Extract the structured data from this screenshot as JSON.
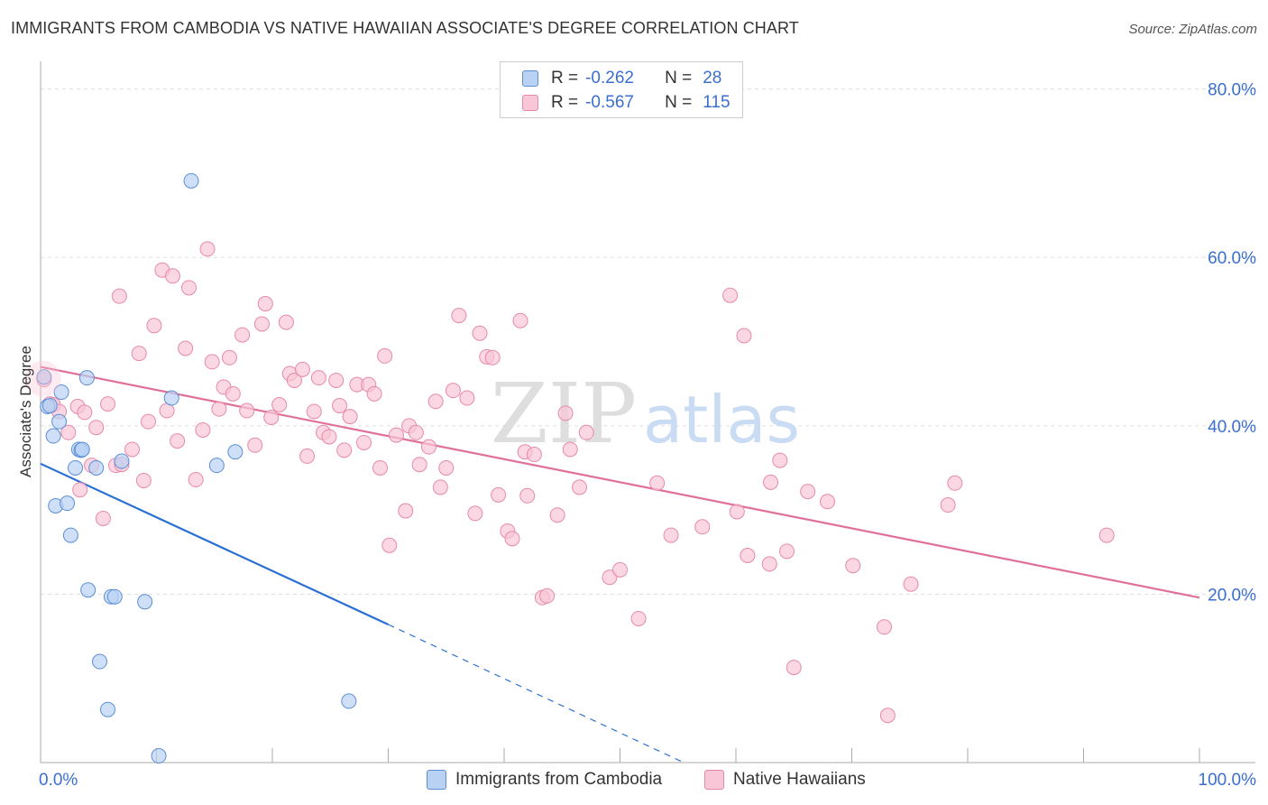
{
  "title": "IMMIGRANTS FROM CAMBODIA VS NATIVE HAWAIIAN ASSOCIATE'S DEGREE CORRELATION CHART",
  "source": "Source: ZipAtlas.com",
  "watermark": {
    "zip": "ZIP",
    "atlas": "atlas"
  },
  "legend": {
    "series1": {
      "r_label": "R =",
      "r_value": "-0.262",
      "n_label": "N =",
      "n_value": "28"
    },
    "series2": {
      "r_label": "R =",
      "r_value": "-0.567",
      "n_label": "N =",
      "n_value": "115"
    }
  },
  "bottom_legend": {
    "series1": "Immigrants from Cambodia",
    "series2": "Native Hawaiians"
  },
  "colors": {
    "blue_fill": "#b9d1f3",
    "blue_stroke": "#5b8fd6",
    "blue_line": "#2a6fd4",
    "pink_fill": "#f8c6d6",
    "pink_stroke": "#e68aa8",
    "pink_line": "#e0709a",
    "axis_text": "#3a6fd0",
    "grid": "#dddddd"
  },
  "chart_data": {
    "type": "scatter",
    "title": "IMMIGRANTS FROM CAMBODIA VS NATIVE HAWAIIAN ASSOCIATE'S DEGREE CORRELATION CHART",
    "xlabel": "",
    "ylabel": "Associate's Degree",
    "xlim": [
      0,
      100
    ],
    "ylim": [
      0,
      82
    ],
    "x_tick_labels": [
      "0.0%",
      "100.0%"
    ],
    "y_ticks": [
      20,
      40,
      60,
      80
    ],
    "y_tick_labels": [
      "20.0%",
      "40.0%",
      "60.0%",
      "80.0%"
    ],
    "series": [
      {
        "name": "Immigrants from Cambodia",
        "points": [
          [
            0.3,
            45.8
          ],
          [
            0.6,
            42.3
          ],
          [
            1.1,
            38.8
          ],
          [
            1.8,
            44.0
          ],
          [
            1.6,
            40.5
          ],
          [
            4.0,
            45.7
          ],
          [
            1.3,
            30.5
          ],
          [
            2.3,
            30.8
          ],
          [
            2.6,
            27.0
          ],
          [
            3.0,
            35.0
          ],
          [
            3.3,
            37.2
          ],
          [
            3.5,
            37.1
          ],
          [
            4.8,
            35.0
          ],
          [
            7.0,
            35.8
          ],
          [
            4.1,
            20.5
          ],
          [
            6.1,
            19.7
          ],
          [
            6.4,
            19.7
          ],
          [
            9.0,
            19.1
          ],
          [
            5.1,
            12.0
          ],
          [
            5.8,
            6.3
          ],
          [
            10.2,
            0.8
          ],
          [
            11.3,
            43.3
          ],
          [
            13.0,
            69.1
          ],
          [
            15.2,
            35.3
          ],
          [
            16.8,
            36.9
          ],
          [
            26.6,
            7.3
          ],
          [
            0.8,
            42.4
          ],
          [
            3.6,
            37.2
          ]
        ],
        "trend": {
          "x0": 0,
          "y0": 35.5,
          "x1": 30,
          "y1": 16.4,
          "dashed_to_x": 55.5,
          "dashed_to_y": 0
        }
      },
      {
        "name": "Native Hawaiians",
        "points": [
          [
            0.3,
            45.5
          ],
          [
            0.8,
            42.6
          ],
          [
            1.1,
            42.5
          ],
          [
            1.6,
            41.7
          ],
          [
            2.4,
            39.2
          ],
          [
            3.2,
            42.3
          ],
          [
            3.4,
            32.4
          ],
          [
            3.8,
            41.6
          ],
          [
            4.4,
            35.3
          ],
          [
            4.8,
            39.8
          ],
          [
            5.4,
            29.0
          ],
          [
            5.8,
            42.6
          ],
          [
            6.5,
            35.3
          ],
          [
            7.0,
            35.4
          ],
          [
            7.9,
            37.2
          ],
          [
            6.8,
            55.4
          ],
          [
            8.5,
            48.6
          ],
          [
            8.9,
            33.5
          ],
          [
            9.3,
            40.5
          ],
          [
            9.8,
            51.9
          ],
          [
            10.5,
            58.5
          ],
          [
            10.9,
            41.8
          ],
          [
            11.4,
            57.8
          ],
          [
            11.8,
            38.2
          ],
          [
            12.5,
            49.2
          ],
          [
            12.8,
            56.4
          ],
          [
            13.4,
            33.6
          ],
          [
            14.0,
            39.5
          ],
          [
            14.4,
            61.0
          ],
          [
            14.8,
            47.6
          ],
          [
            15.4,
            42.0
          ],
          [
            15.8,
            44.6
          ],
          [
            16.3,
            48.1
          ],
          [
            16.6,
            43.8
          ],
          [
            17.4,
            50.8
          ],
          [
            17.8,
            41.8
          ],
          [
            18.5,
            37.7
          ],
          [
            19.1,
            52.1
          ],
          [
            19.4,
            54.5
          ],
          [
            19.9,
            41.0
          ],
          [
            20.6,
            42.5
          ],
          [
            21.2,
            52.3
          ],
          [
            21.5,
            46.2
          ],
          [
            21.9,
            45.4
          ],
          [
            22.6,
            46.7
          ],
          [
            23.0,
            36.4
          ],
          [
            23.6,
            41.7
          ],
          [
            24.0,
            45.7
          ],
          [
            24.4,
            39.2
          ],
          [
            24.9,
            38.7
          ],
          [
            25.5,
            45.4
          ],
          [
            25.8,
            42.4
          ],
          [
            26.2,
            37.1
          ],
          [
            26.7,
            41.1
          ],
          [
            27.3,
            44.9
          ],
          [
            27.9,
            38.0
          ],
          [
            28.3,
            44.9
          ],
          [
            28.8,
            43.8
          ],
          [
            29.3,
            35.0
          ],
          [
            29.7,
            48.3
          ],
          [
            30.1,
            25.8
          ],
          [
            30.7,
            38.9
          ],
          [
            31.5,
            29.9
          ],
          [
            31.8,
            40.0
          ],
          [
            32.4,
            39.2
          ],
          [
            32.7,
            35.4
          ],
          [
            33.5,
            37.5
          ],
          [
            34.1,
            42.9
          ],
          [
            34.5,
            32.7
          ],
          [
            35.0,
            35.0
          ],
          [
            35.6,
            44.2
          ],
          [
            36.1,
            53.1
          ],
          [
            36.8,
            43.3
          ],
          [
            37.5,
            29.6
          ],
          [
            37.9,
            51.0
          ],
          [
            38.5,
            48.2
          ],
          [
            39.0,
            48.1
          ],
          [
            39.5,
            31.8
          ],
          [
            40.3,
            27.5
          ],
          [
            40.7,
            26.6
          ],
          [
            41.4,
            52.5
          ],
          [
            42.0,
            31.7
          ],
          [
            41.8,
            36.9
          ],
          [
            42.6,
            36.6
          ],
          [
            43.3,
            19.6
          ],
          [
            43.7,
            19.8
          ],
          [
            44.6,
            29.4
          ],
          [
            45.3,
            41.5
          ],
          [
            45.7,
            37.2
          ],
          [
            46.5,
            32.7
          ],
          [
            47.1,
            39.2
          ],
          [
            49.1,
            22.0
          ],
          [
            50.0,
            22.9
          ],
          [
            51.6,
            17.1
          ],
          [
            53.2,
            33.2
          ],
          [
            54.4,
            27.0
          ],
          [
            57.1,
            28.0
          ],
          [
            59.5,
            55.5
          ],
          [
            60.1,
            29.8
          ],
          [
            60.7,
            50.7
          ],
          [
            61.0,
            24.6
          ],
          [
            62.9,
            23.6
          ],
          [
            63.0,
            33.3
          ],
          [
            63.8,
            35.9
          ],
          [
            64.4,
            25.1
          ],
          [
            65.0,
            11.3
          ],
          [
            66.2,
            32.2
          ],
          [
            67.9,
            31.0
          ],
          [
            70.1,
            23.4
          ],
          [
            72.8,
            16.1
          ],
          [
            73.1,
            5.6
          ],
          [
            75.1,
            21.2
          ],
          [
            78.3,
            30.6
          ],
          [
            78.9,
            33.2
          ],
          [
            92.0,
            27.0
          ]
        ],
        "trend": {
          "x0": 0,
          "y0": 47.0,
          "x1": 100,
          "y1": 19.6
        }
      }
    ]
  }
}
